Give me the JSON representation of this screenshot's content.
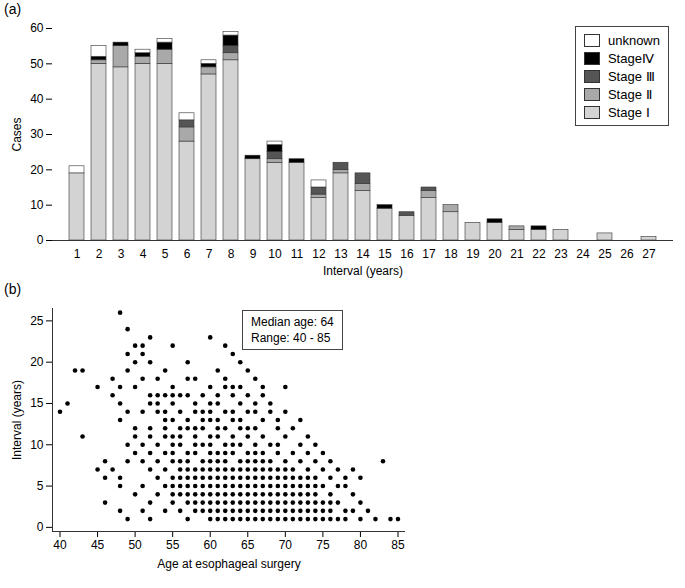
{
  "chart_data": [
    {
      "type": "bar",
      "title": "(a)",
      "stacked": true,
      "legend": "top-right",
      "grid": false,
      "x_label": "Interval (years)",
      "y_label": "Cases",
      "categories": [
        1,
        2,
        3,
        4,
        5,
        6,
        7,
        8,
        9,
        10,
        11,
        12,
        13,
        14,
        15,
        16,
        17,
        18,
        19,
        20,
        21,
        22,
        23,
        24,
        25,
        26,
        27
      ],
      "ylim": [
        0,
        60
      ],
      "yticks": [
        0,
        10,
        20,
        30,
        40,
        50,
        60
      ],
      "series": [
        {
          "name": "Stage Ⅰ",
          "color": "#d3d3d3",
          "values": [
            19,
            50,
            49,
            50,
            50,
            28,
            47,
            51,
            23,
            22,
            22,
            12,
            19,
            14,
            9,
            7,
            12,
            8,
            5,
            5,
            3,
            3,
            3,
            0,
            2,
            0,
            1
          ]
        },
        {
          "name": "Stage Ⅱ",
          "color": "#a9a9a9",
          "values": [
            0,
            1,
            6,
            2,
            4,
            4,
            2,
            2,
            0,
            1,
            0,
            1,
            1,
            2,
            0,
            0,
            2,
            2,
            0,
            0,
            1,
            0,
            0,
            0,
            0,
            0,
            0
          ]
        },
        {
          "name": "Stage Ⅲ",
          "color": "#555555",
          "values": [
            0,
            0,
            0,
            0,
            0,
            2,
            0,
            2,
            0,
            2,
            0,
            2,
            2,
            3,
            0,
            1,
            1,
            0,
            0,
            0,
            0,
            0,
            0,
            0,
            0,
            0,
            0
          ]
        },
        {
          "name": "StageⅣ",
          "color": "#000000",
          "values": [
            0,
            1,
            1,
            1,
            2,
            0,
            1,
            3,
            1,
            2,
            1,
            0,
            0,
            0,
            1,
            0,
            0,
            0,
            0,
            1,
            0,
            1,
            0,
            0,
            0,
            0,
            0
          ]
        },
        {
          "name": "unknown",
          "color": "#ffffff",
          "values": [
            2,
            3,
            0,
            1,
            1,
            2,
            1,
            1,
            0,
            1,
            0,
            2,
            0,
            0,
            0,
            0,
            0,
            0,
            0,
            0,
            0,
            0,
            0,
            0,
            0,
            0,
            0
          ]
        }
      ]
    },
    {
      "type": "scatter",
      "title": "(b)",
      "grid": false,
      "color": "#000000",
      "x_label": "Age at esophageal surgery",
      "y_label": "Interval (years)",
      "annotations": [
        "Median age: 64",
        "Range: 40 - 85"
      ],
      "xlim": [
        39,
        86
      ],
      "xticks": [
        40,
        45,
        50,
        55,
        60,
        65,
        70,
        75,
        80,
        85
      ],
      "ylim": [
        -0.5,
        26.5
      ],
      "yticks": [
        0,
        5,
        10,
        15,
        20,
        25
      ],
      "x": [
        48,
        49,
        52,
        60,
        50,
        51,
        55,
        62,
        49,
        51,
        63,
        50,
        52,
        57,
        64,
        42,
        43,
        49,
        54,
        61,
        65,
        47,
        51,
        53,
        57,
        58,
        62,
        66,
        45,
        48,
        50,
        55,
        60,
        62,
        63,
        64,
        67,
        70,
        47,
        52,
        53,
        54,
        55,
        56,
        57,
        59,
        61,
        63,
        65,
        67,
        41,
        48,
        52,
        53,
        55,
        58,
        60,
        61,
        64,
        66,
        68,
        40,
        49,
        51,
        53,
        54,
        56,
        58,
        59,
        60,
        62,
        63,
        65,
        66,
        68,
        70,
        48,
        54,
        55,
        57,
        59,
        60,
        61,
        63,
        64,
        67,
        69,
        72,
        50,
        52,
        54,
        56,
        57,
        58,
        59,
        61,
        62,
        64,
        65,
        66,
        69,
        71,
        43,
        50,
        52,
        54,
        55,
        56,
        58,
        60,
        61,
        63,
        65,
        67,
        70,
        73,
        49,
        51,
        53,
        55,
        56,
        58,
        59,
        60,
        62,
        63,
        64,
        66,
        68,
        69,
        72,
        74,
        50,
        52,
        54,
        55,
        57,
        58,
        60,
        61,
        62,
        63,
        65,
        66,
        67,
        69,
        71,
        73,
        75,
        46,
        49,
        51,
        53,
        55,
        56,
        57,
        59,
        60,
        61,
        62,
        64,
        65,
        66,
        67,
        68,
        70,
        72,
        74,
        76,
        83,
        45,
        47,
        52,
        54,
        56,
        57,
        58,
        59,
        60,
        61,
        62,
        63,
        64,
        65,
        66,
        67,
        68,
        69,
        70,
        71,
        73,
        75,
        77,
        79,
        46,
        48,
        53,
        55,
        56,
        57,
        58,
        59,
        60,
        61,
        62,
        63,
        64,
        65,
        66,
        67,
        68,
        69,
        70,
        71,
        72,
        73,
        74,
        76,
        78,
        80,
        48,
        51,
        54,
        55,
        56,
        57,
        58,
        59,
        60,
        61,
        62,
        63,
        64,
        65,
        66,
        67,
        68,
        69,
        70,
        71,
        72,
        73,
        74,
        75,
        77,
        78,
        50,
        53,
        55,
        56,
        57,
        58,
        59,
        60,
        61,
        62,
        63,
        64,
        65,
        66,
        67,
        68,
        69,
        70,
        71,
        72,
        73,
        74,
        76,
        79,
        46,
        52,
        55,
        57,
        58,
        59,
        60,
        61,
        62,
        63,
        64,
        65,
        66,
        67,
        68,
        69,
        70,
        71,
        72,
        73,
        74,
        75,
        76,
        77,
        80,
        48,
        51,
        54,
        56,
        58,
        59,
        60,
        61,
        62,
        63,
        64,
        65,
        66,
        67,
        68,
        69,
        70,
        71,
        72,
        73,
        74,
        75,
        76,
        78,
        79,
        81,
        49,
        52,
        57,
        60,
        61,
        62,
        63,
        64,
        65,
        66,
        67,
        68,
        69,
        70,
        71,
        72,
        73,
        74,
        75,
        76,
        77,
        78,
        80,
        82,
        84,
        85
      ],
      "values": [
        26,
        24,
        23,
        23,
        22,
        22,
        22,
        22,
        21,
        21,
        21,
        20,
        20,
        20,
        20,
        19,
        19,
        19,
        19,
        19,
        19,
        18,
        18,
        18,
        18,
        18,
        18,
        18,
        17,
        17,
        17,
        17,
        17,
        17,
        17,
        17,
        17,
        17,
        16,
        16,
        16,
        16,
        16,
        16,
        16,
        16,
        16,
        16,
        16,
        16,
        15,
        15,
        15,
        15,
        15,
        15,
        15,
        15,
        15,
        15,
        15,
        14,
        14,
        14,
        14,
        14,
        14,
        14,
        14,
        14,
        14,
        14,
        14,
        14,
        14,
        14,
        13,
        13,
        13,
        13,
        13,
        13,
        13,
        13,
        13,
        13,
        13,
        13,
        12,
        12,
        12,
        12,
        12,
        12,
        12,
        12,
        12,
        12,
        12,
        12,
        12,
        12,
        11,
        11,
        11,
        11,
        11,
        11,
        11,
        11,
        11,
        11,
        11,
        11,
        11,
        11,
        10,
        10,
        10,
        10,
        10,
        10,
        10,
        10,
        10,
        10,
        10,
        10,
        10,
        10,
        10,
        10,
        9,
        9,
        9,
        9,
        9,
        9,
        9,
        9,
        9,
        9,
        9,
        9,
        9,
        9,
        9,
        9,
        9,
        8,
        8,
        8,
        8,
        8,
        8,
        8,
        8,
        8,
        8,
        8,
        8,
        8,
        8,
        8,
        8,
        8,
        8,
        8,
        8,
        8,
        7,
        7,
        7,
        7,
        7,
        7,
        7,
        7,
        7,
        7,
        7,
        7,
        7,
        7,
        7,
        7,
        7,
        7,
        7,
        7,
        7,
        7,
        7,
        7,
        6,
        6,
        6,
        6,
        6,
        6,
        6,
        6,
        6,
        6,
        6,
        6,
        6,
        6,
        6,
        6,
        6,
        6,
        6,
        6,
        6,
        6,
        6,
        6,
        6,
        6,
        5,
        5,
        5,
        5,
        5,
        5,
        5,
        5,
        5,
        5,
        5,
        5,
        5,
        5,
        5,
        5,
        5,
        5,
        5,
        5,
        5,
        5,
        5,
        5,
        5,
        5,
        4,
        4,
        4,
        4,
        4,
        4,
        4,
        4,
        4,
        4,
        4,
        4,
        4,
        4,
        4,
        4,
        4,
        4,
        4,
        4,
        4,
        4,
        4,
        4,
        3,
        3,
        3,
        3,
        3,
        3,
        3,
        3,
        3,
        3,
        3,
        3,
        3,
        3,
        3,
        3,
        3,
        3,
        3,
        3,
        3,
        3,
        3,
        3,
        3,
        2,
        2,
        2,
        2,
        2,
        2,
        2,
        2,
        2,
        2,
        2,
        2,
        2,
        2,
        2,
        2,
        2,
        2,
        2,
        2,
        2,
        2,
        2,
        2,
        2,
        2,
        1,
        1,
        1,
        1,
        1,
        1,
        1,
        1,
        1,
        1,
        1,
        1,
        1,
        1,
        1,
        1,
        1,
        1,
        1,
        1,
        1,
        1,
        1,
        1,
        1,
        1
      ]
    }
  ]
}
